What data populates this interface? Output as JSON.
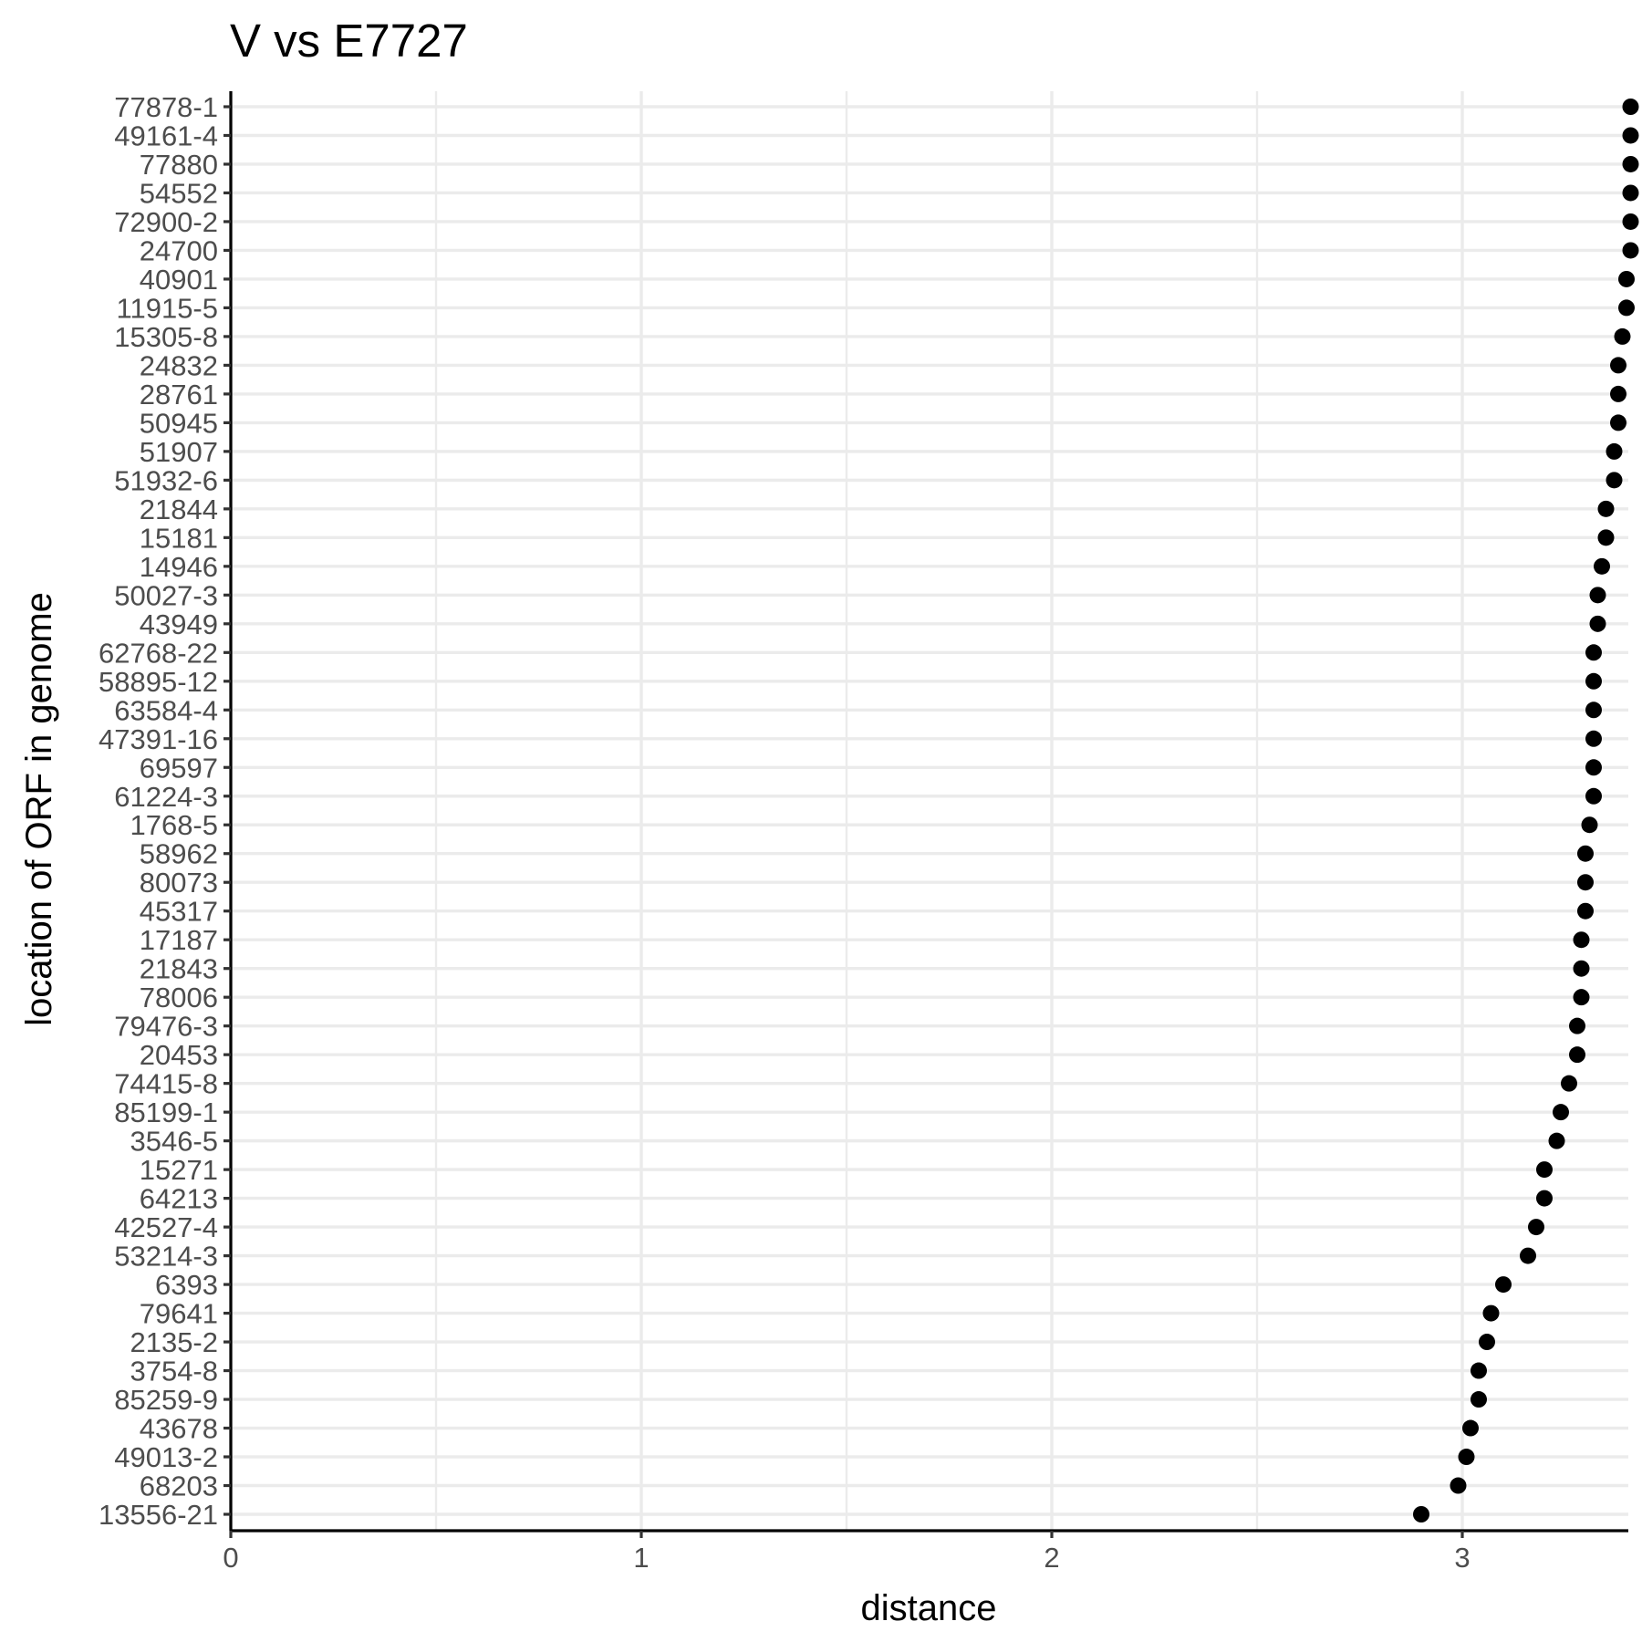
{
  "chart_data": {
    "type": "scatter",
    "title": "V vs E7727",
    "xlabel": "distance",
    "ylabel": "location of ORF in genome",
    "xlim": [
      0,
      3.41
    ],
    "x_ticks": [
      "0",
      "1",
      "2",
      "3"
    ],
    "grid": true,
    "point_color": "#000000",
    "categories": [
      "77878-1",
      "49161-4",
      "77880",
      "54552",
      "72900-2",
      "24700",
      "40901",
      "11915-5",
      "15305-8",
      "24832",
      "28761",
      "50945",
      "51907",
      "51932-6",
      "21844",
      "15181",
      "14946",
      "50027-3",
      "43949",
      "62768-22",
      "58895-12",
      "63584-4",
      "47391-16",
      "69597",
      "61224-3",
      "1768-5",
      "58962",
      "80073",
      "45317",
      "17187",
      "21843",
      "78006",
      "79476-3",
      "20453",
      "74415-8",
      "85199-1",
      "3546-5",
      "15271",
      "64213",
      "42527-4",
      "53214-3",
      "6393",
      "79641",
      "2135-2",
      "3754-8",
      "85259-9",
      "43678",
      "49013-2",
      "68203",
      "13556-21"
    ],
    "values": [
      3.41,
      3.41,
      3.41,
      3.41,
      3.41,
      3.41,
      3.4,
      3.4,
      3.39,
      3.38,
      3.38,
      3.38,
      3.37,
      3.37,
      3.35,
      3.35,
      3.34,
      3.33,
      3.33,
      3.32,
      3.32,
      3.32,
      3.32,
      3.32,
      3.32,
      3.31,
      3.3,
      3.3,
      3.3,
      3.29,
      3.29,
      3.29,
      3.28,
      3.28,
      3.26,
      3.24,
      3.23,
      3.2,
      3.2,
      3.18,
      3.16,
      3.1,
      3.07,
      3.06,
      3.04,
      3.04,
      3.02,
      3.01,
      2.99,
      2.9
    ]
  }
}
